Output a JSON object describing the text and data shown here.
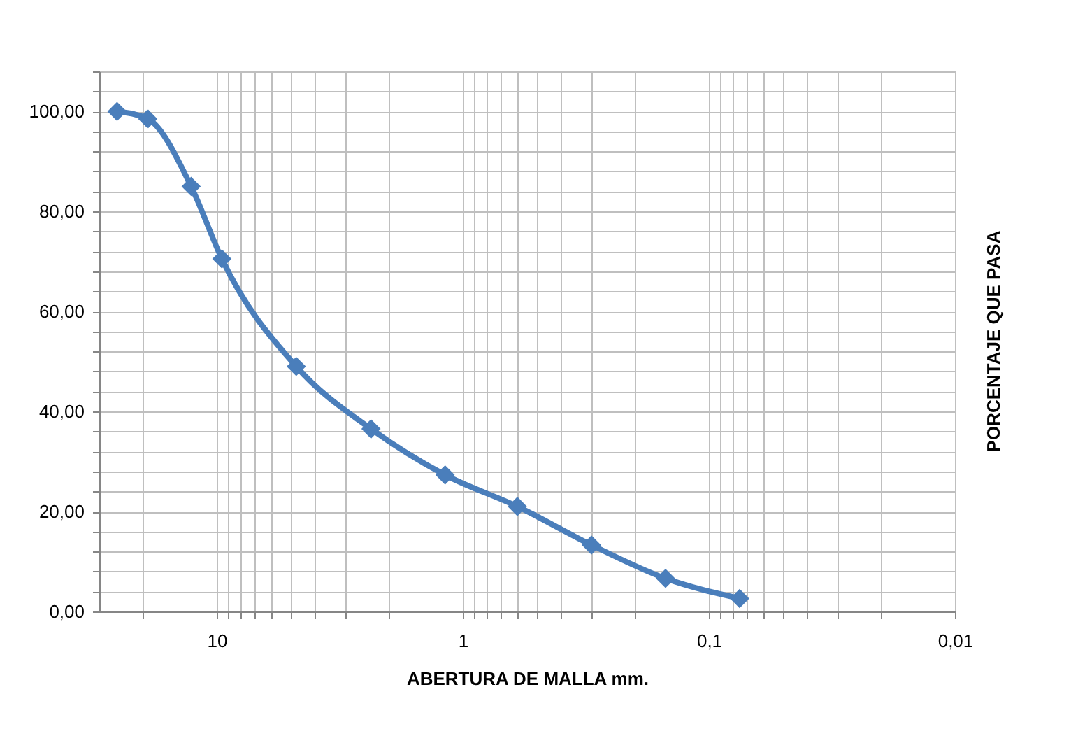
{
  "chart_data": {
    "type": "line",
    "xlabel": "ABERTURA DE MALLA mm.",
    "ylabel": "PORCENTAJE QUE PASA",
    "x": [
      25.4,
      19.05,
      12.7,
      9.525,
      4.75,
      2.36,
      1.18,
      0.6,
      0.3,
      0.15,
      0.075
    ],
    "series": [
      {
        "color": "#4a7ebb",
        "values": [
          100,
          98.5,
          85,
          70.5,
          49,
          36.5,
          27.3,
          21,
          13.3,
          6.6,
          2.6
        ]
      }
    ],
    "log": "x",
    "xlim": [
      30,
      0.01
    ],
    "xticks": [
      {
        "value": 20,
        "label": null
      },
      {
        "value": 10,
        "label": "10"
      },
      {
        "value": 9,
        "label": null
      },
      {
        "value": 8,
        "label": null
      },
      {
        "value": 7,
        "label": null
      },
      {
        "value": 6,
        "label": null
      },
      {
        "value": 5,
        "label": null
      },
      {
        "value": 4,
        "label": null
      },
      {
        "value": 3,
        "label": null
      },
      {
        "value": 2,
        "label": null
      },
      {
        "value": 1,
        "label": "1"
      },
      {
        "value": 0.9,
        "label": null
      },
      {
        "value": 0.8,
        "label": null
      },
      {
        "value": 0.7,
        "label": null
      },
      {
        "value": 0.6,
        "label": null
      },
      {
        "value": 0.5,
        "label": null
      },
      {
        "value": 0.4,
        "label": null
      },
      {
        "value": 0.3,
        "label": null
      },
      {
        "value": 0.2,
        "label": null
      },
      {
        "value": 0.1,
        "label": "0,1"
      },
      {
        "value": 0.09,
        "label": null
      },
      {
        "value": 0.08,
        "label": null
      },
      {
        "value": 0.07,
        "label": null
      },
      {
        "value": 0.06,
        "label": null
      },
      {
        "value": 0.05,
        "label": null
      },
      {
        "value": 0.04,
        "label": null
      },
      {
        "value": 0.03,
        "label": null
      },
      {
        "value": 0.02,
        "label": null
      },
      {
        "value": 0.01,
        "label": "0,01"
      }
    ],
    "ylim": [
      0,
      108
    ],
    "yticks": [
      {
        "value": 0,
        "label": "0,00"
      },
      {
        "value": 4,
        "label": null
      },
      {
        "value": 8,
        "label": null
      },
      {
        "value": 12,
        "label": null
      },
      {
        "value": 16,
        "label": null
      },
      {
        "value": 20,
        "label": "20,00"
      },
      {
        "value": 24,
        "label": null
      },
      {
        "value": 28,
        "label": null
      },
      {
        "value": 32,
        "label": null
      },
      {
        "value": 36,
        "label": null
      },
      {
        "value": 40,
        "label": "40,00"
      },
      {
        "value": 44,
        "label": null
      },
      {
        "value": 48,
        "label": null
      },
      {
        "value": 52,
        "label": null
      },
      {
        "value": 56,
        "label": null
      },
      {
        "value": 60,
        "label": "60,00"
      },
      {
        "value": 64,
        "label": null
      },
      {
        "value": 68,
        "label": null
      },
      {
        "value": 72,
        "label": null
      },
      {
        "value": 76,
        "label": null
      },
      {
        "value": 80,
        "label": "80,00"
      },
      {
        "value": 84,
        "label": null
      },
      {
        "value": 88,
        "label": null
      },
      {
        "value": 92,
        "label": null
      },
      {
        "value": 96,
        "label": null
      },
      {
        "value": 100,
        "label": "100,00"
      },
      {
        "value": 104,
        "label": null
      },
      {
        "value": 108,
        "label": null
      }
    ],
    "grid": true,
    "marker": "diamond",
    "line_style": "solid"
  }
}
